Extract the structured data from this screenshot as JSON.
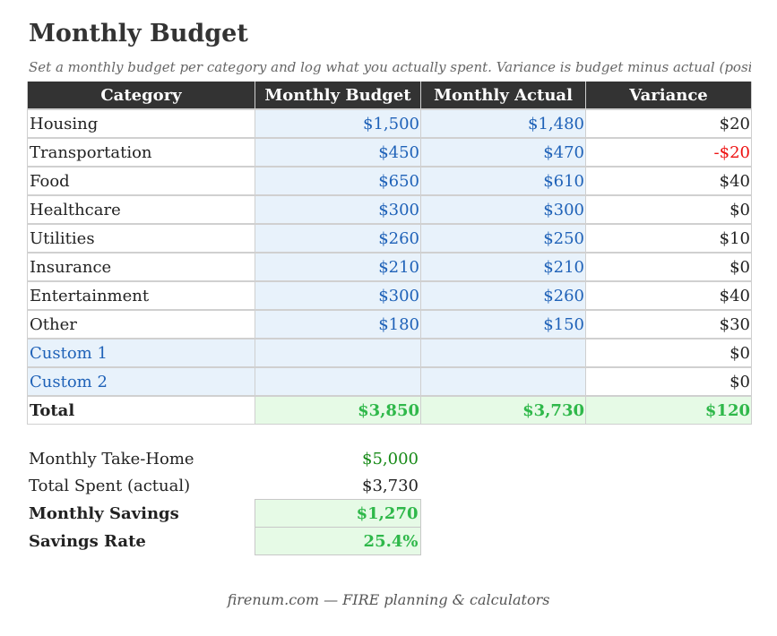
{
  "page": {
    "title": "Monthly Budget",
    "subtitle": "Set a monthly budget per category and log what you actually spent. Variance is budget minus actual (positi"
  },
  "table": {
    "headers": [
      "Category",
      "Monthly Budget",
      "Monthly Actual",
      "Variance"
    ],
    "rows": [
      {
        "category": "Housing",
        "budget": "$1,500",
        "actual": "$1,480",
        "variance": "$20"
      },
      {
        "category": "Transportation",
        "budget": "$450",
        "actual": "$470",
        "variance": "-$20"
      },
      {
        "category": "Food",
        "budget": "$650",
        "actual": "$610",
        "variance": "$40"
      },
      {
        "category": "Healthcare",
        "budget": "$300",
        "actual": "$300",
        "variance": "$0"
      },
      {
        "category": "Utilities",
        "budget": "$260",
        "actual": "$250",
        "variance": "$10"
      },
      {
        "category": "Insurance",
        "budget": "$210",
        "actual": "$210",
        "variance": "$0"
      },
      {
        "category": "Entertainment",
        "budget": "$300",
        "actual": "$260",
        "variance": "$40"
      },
      {
        "category": "Other",
        "budget": "$180",
        "actual": "$150",
        "variance": "$30"
      },
      {
        "category": "Custom 1",
        "budget": "",
        "actual": "",
        "variance": "$0"
      },
      {
        "category": "Custom 2",
        "budget": "",
        "actual": "",
        "variance": "$0"
      }
    ],
    "total": {
      "label": "Total",
      "budget": "$3,850",
      "actual": "$3,730",
      "variance": "$120"
    }
  },
  "summary": {
    "take_home_label": "Monthly Take-Home",
    "take_home_value": "$5,000",
    "spent_label": "Total Spent (actual)",
    "spent_value": "$3,730",
    "savings_label": "Monthly Savings",
    "savings_value": "$1,270",
    "rate_label": "Savings Rate",
    "rate_value": "25.4%"
  },
  "footer": {
    "text": "firenum.com — FIRE planning & calculators"
  },
  "colors": {
    "header_bg": "#333333",
    "input_blue_text": "#1f62b8",
    "input_blue_bg": "#e8f2fb",
    "total_green_text": "#2fb84a",
    "total_green_bg": "#e6fae6",
    "negative_red": "#ee1111",
    "take_home_green": "#178a17"
  }
}
